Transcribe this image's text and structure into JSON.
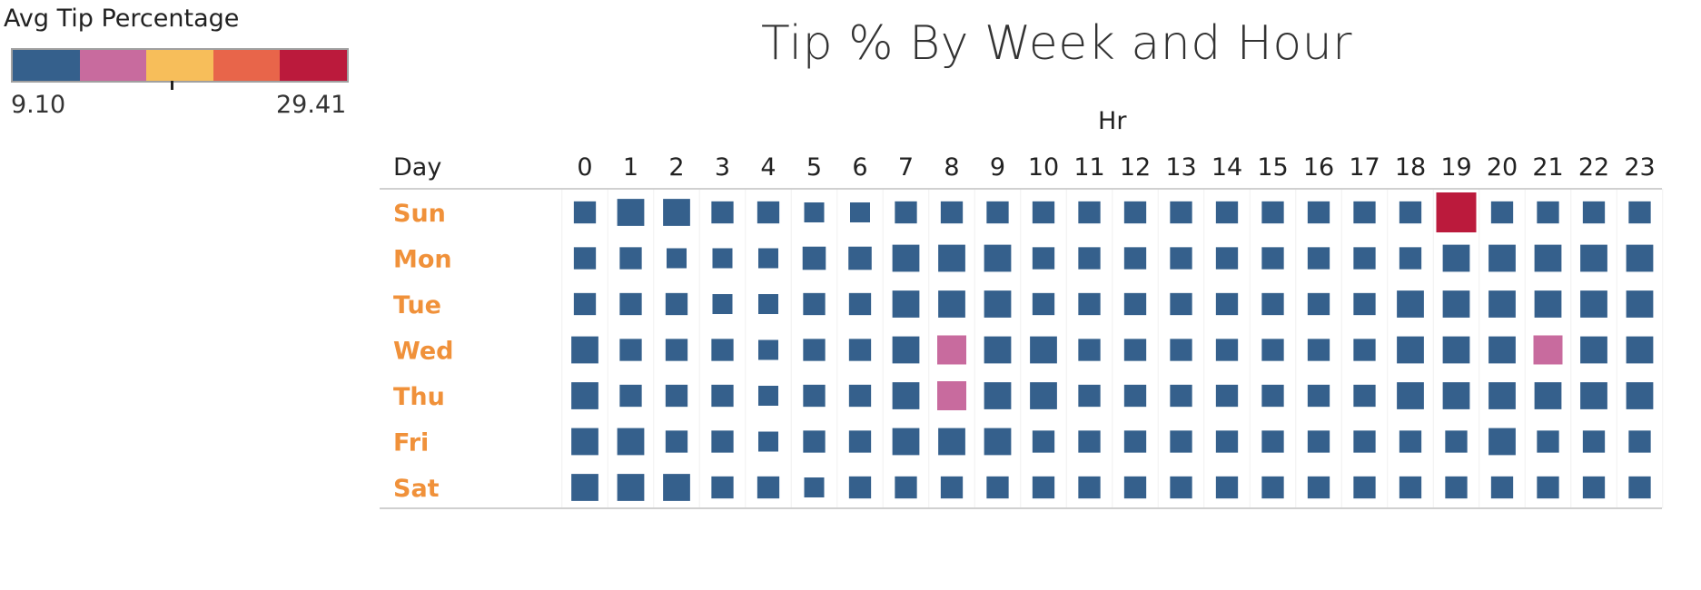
{
  "legend": {
    "title": "Avg Tip Percentage",
    "min_label": "9.10",
    "max_label": "29.41",
    "colors": [
      "#35608c",
      "#c86b9e",
      "#f7be5a",
      "#e8654a",
      "#bb1a3c"
    ]
  },
  "chart_data": {
    "type": "heatmap",
    "title": "Tip % By Week and Hour",
    "x_header": "Hr",
    "y_header": "Day",
    "x": [
      "0",
      "1",
      "2",
      "3",
      "4",
      "5",
      "6",
      "7",
      "8",
      "9",
      "10",
      "11",
      "12",
      "13",
      "14",
      "15",
      "16",
      "17",
      "18",
      "19",
      "20",
      "21",
      "22",
      "23"
    ],
    "y": [
      "Sun",
      "Mon",
      "Tue",
      "Wed",
      "Thu",
      "Fri",
      "Sat"
    ],
    "color_range": [
      9.1,
      29.41
    ],
    "values": [
      [
        10.5,
        11.8,
        11.8,
        10.5,
        10.5,
        9.8,
        9.6,
        10.5,
        10.5,
        10.5,
        10.5,
        10.5,
        10.5,
        10.5,
        10.5,
        10.5,
        10.5,
        10.5,
        10.5,
        28.5,
        10.5,
        10.5,
        10.5,
        10.5
      ],
      [
        10.5,
        10.5,
        9.8,
        9.6,
        9.6,
        10.8,
        10.8,
        11.8,
        11.8,
        11.8,
        10.5,
        10.5,
        10.5,
        10.5,
        10.5,
        10.5,
        10.5,
        10.5,
        10.5,
        11.8,
        11.8,
        11.8,
        11.8,
        11.8
      ],
      [
        10.5,
        10.5,
        10.5,
        9.6,
        9.6,
        10.5,
        10.5,
        11.8,
        11.8,
        11.8,
        10.5,
        10.5,
        10.5,
        10.5,
        10.5,
        10.5,
        10.5,
        10.5,
        11.8,
        11.8,
        11.8,
        11.8,
        11.8,
        11.8
      ],
      [
        11.8,
        10.5,
        10.5,
        10.5,
        9.6,
        10.5,
        10.5,
        11.8,
        14.5,
        11.8,
        11.8,
        10.5,
        10.5,
        10.5,
        10.5,
        10.5,
        10.5,
        10.5,
        11.8,
        11.8,
        11.8,
        14.5,
        11.8,
        11.8
      ],
      [
        11.8,
        10.5,
        10.5,
        10.5,
        9.6,
        10.5,
        10.5,
        11.8,
        14.5,
        11.8,
        11.8,
        10.5,
        10.5,
        10.5,
        10.5,
        10.5,
        10.5,
        10.5,
        11.8,
        11.8,
        11.8,
        11.8,
        11.8,
        11.8
      ],
      [
        11.8,
        11.8,
        10.5,
        10.5,
        9.6,
        10.5,
        10.5,
        11.8,
        11.8,
        11.8,
        10.5,
        10.5,
        10.5,
        10.5,
        10.5,
        10.5,
        10.5,
        10.5,
        10.5,
        10.5,
        11.8,
        10.5,
        10.5,
        10.5
      ],
      [
        11.8,
        11.8,
        11.8,
        10.5,
        10.5,
        9.6,
        10.5,
        10.5,
        10.5,
        10.5,
        10.5,
        10.5,
        10.5,
        10.5,
        10.5,
        10.5,
        10.5,
        10.5,
        10.5,
        10.5,
        10.5,
        10.5,
        10.5,
        10.5
      ]
    ],
    "colors": {
      "cell_default": "#35608c",
      "cell_mid": "#c86b9e",
      "cell_high": "#bb1a3c",
      "day_label": "#f0913a"
    }
  }
}
